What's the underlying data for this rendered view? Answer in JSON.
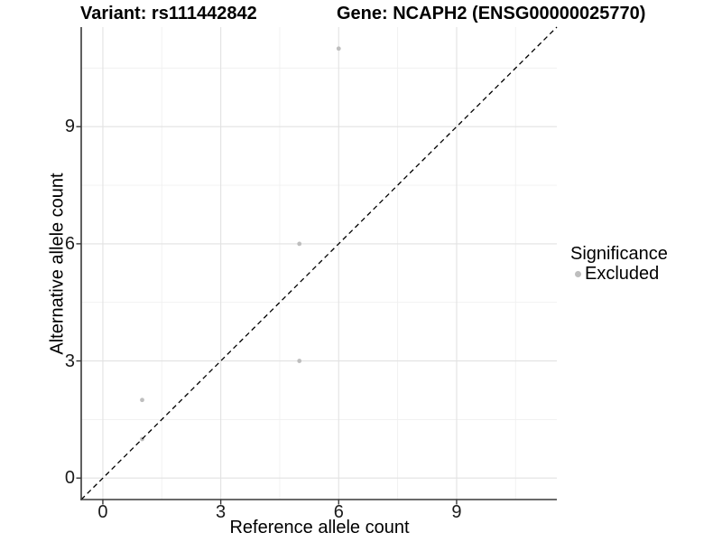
{
  "title": {
    "variant": "Variant: rs111442842",
    "gene": "Gene: NCAPH2 (ENSG00000025770)"
  },
  "chart_data": {
    "type": "scatter",
    "title": "Variant: rs111442842    Gene: NCAPH2 (ENSG00000025770)",
    "xlabel": "Reference allele count",
    "ylabel": "Alternative allele count",
    "xlim": [
      -0.55,
      11.55
    ],
    "ylim": [
      -0.55,
      11.55
    ],
    "xticks": [
      0,
      3,
      6,
      9
    ],
    "yticks": [
      0,
      3,
      6,
      9
    ],
    "xticks_minor": [
      1.5,
      4.5,
      7.5,
      10.5
    ],
    "yticks_minor": [
      1.5,
      4.5,
      7.5,
      10.5
    ],
    "grid": "major and minor, light grey on white panel",
    "series": [
      {
        "name": "Excluded",
        "color": "#bebebe",
        "points": [
          [
            1,
            1
          ],
          [
            1,
            2
          ],
          [
            5,
            3
          ],
          [
            5,
            6
          ],
          [
            6,
            11
          ]
        ]
      }
    ],
    "reference_line": {
      "type": "identity",
      "slope": 1,
      "intercept": 0,
      "style": "dashed",
      "color": "#000000"
    },
    "legend": {
      "title": "Significance",
      "position": "right",
      "items": [
        {
          "label": "Excluded",
          "color": "#bebebe",
          "marker": "circle"
        }
      ]
    }
  },
  "colors": {
    "background": "#ffffff",
    "grid_major": "#e2e2e2",
    "grid_minor": "#f0f0f0",
    "axis_line": "#383838",
    "point": "#bebebe",
    "text": "#1a1a1a"
  }
}
